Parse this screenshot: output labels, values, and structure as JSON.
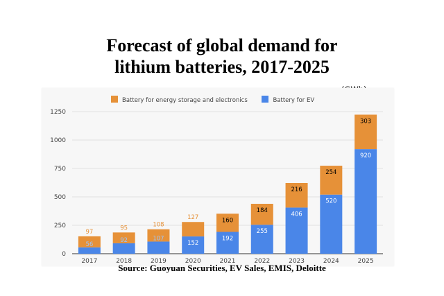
{
  "title_lines": [
    "Forecast of global demand for",
    "lithium batteries, 2017-2025"
  ],
  "unit_label": "(GWh)",
  "source": "Source: Guoyuan Securities, EV Sales, EMIS, Deloitte",
  "colors": {
    "storage": "#E69138",
    "ev": "#4A86E8",
    "storage_label": "#E69138",
    "ev_label_outside": "#9FC5F8"
  },
  "chart_data": {
    "type": "bar",
    "stacked": true,
    "categories": [
      "2017",
      "2018",
      "2019",
      "2020",
      "2021",
      "2022",
      "2023",
      "2024",
      "2025"
    ],
    "series": [
      {
        "name": "Battery for EV",
        "values": [
          56,
          92,
          107,
          152,
          192,
          255,
          406,
          520,
          920
        ]
      },
      {
        "name": "Battery for energy storage and electronics",
        "values": [
          97,
          95,
          108,
          127,
          160,
          184,
          216,
          254,
          303
        ]
      }
    ],
    "legend_order": [
      "Battery for energy storage and electronics",
      "Battery for EV"
    ],
    "legend_position": "top",
    "title": "",
    "xlabel": "",
    "ylabel": "",
    "ylim": [
      0,
      1250
    ],
    "yticks": [
      0,
      250,
      500,
      750,
      1000,
      1250
    ],
    "grid": true
  }
}
